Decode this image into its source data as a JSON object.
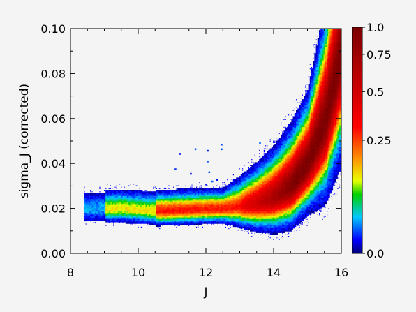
{
  "chart_data": {
    "type": "heatmap",
    "xlabel": "J",
    "ylabel": "sigma_J (corrected)",
    "xlim": [
      8,
      16
    ],
    "ylim": [
      0.0,
      0.1
    ],
    "x_ticks": [
      "8",
      "10",
      "12",
      "14",
      "16"
    ],
    "y_ticks": [
      "0.00",
      "0.02",
      "0.04",
      "0.06",
      "0.08",
      "0.10"
    ],
    "colorbar": {
      "tick_labels": [
        "1.0",
        "0.75",
        "0.5",
        "0.25",
        "0.0"
      ],
      "tick_values": [
        1.0,
        0.75,
        0.5,
        0.25,
        0.0
      ],
      "scale": "nonlinear",
      "colormap": [
        "#00007a",
        "#0000ff",
        "#00c8ff",
        "#00d000",
        "#e8ff00",
        "#ff9000",
        "#ff0000",
        "#7a0000"
      ]
    },
    "density_ridge": {
      "description_free": true,
      "x": [
        8.6,
        9.0,
        9.5,
        10.0,
        10.5,
        11.0,
        11.5,
        12.0,
        12.5,
        13.0,
        13.5,
        14.0,
        14.5,
        15.0,
        15.5,
        16.0
      ],
      "y": [
        0.02,
        0.02,
        0.02,
        0.0195,
        0.019,
        0.0192,
        0.0195,
        0.0198,
        0.02,
        0.021,
        0.0225,
        0.025,
        0.03,
        0.04,
        0.058,
        0.09
      ]
    },
    "peak_density_region": {
      "x": [
        12.0,
        15.6
      ],
      "y": [
        0.018,
        0.065
      ]
    },
    "grid": false,
    "legend": "none"
  }
}
